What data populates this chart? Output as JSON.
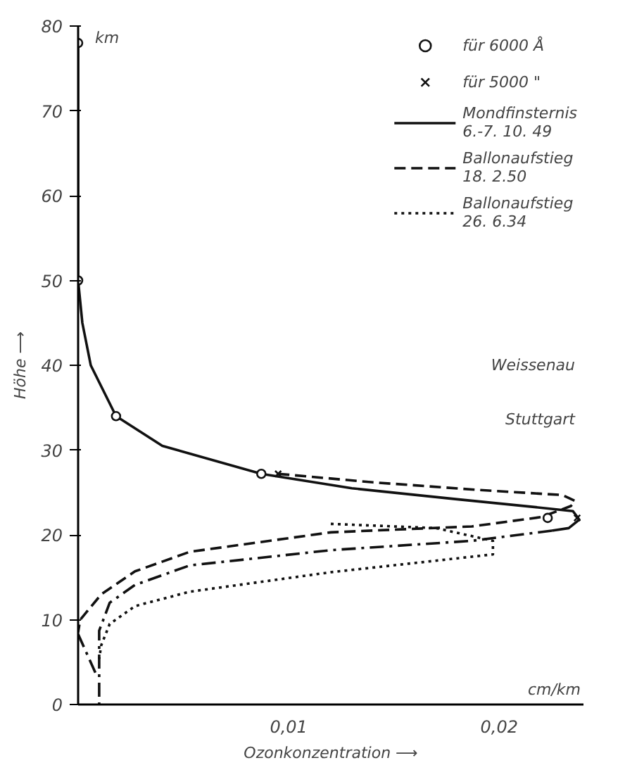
{
  "chart_data": {
    "type": "line",
    "xlabel": "Ozonkonzentration ⟶",
    "ylabel": "Höhe ⟶",
    "xlim": [
      0,
      0.024
    ],
    "ylim": [
      0,
      80
    ],
    "xticks": [
      {
        "value": 0.01,
        "label": "0,01"
      },
      {
        "value": 0.02,
        "label": "0,02"
      }
    ],
    "yticks": [
      0,
      10,
      20,
      30,
      40,
      50,
      60,
      70,
      80
    ],
    "grid": false,
    "legend": "top right",
    "annotations": [
      "km",
      "cm/km",
      "Weissenau",
      "Stuttgart"
    ],
    "series": [
      {
        "name": "Mondfinsternis\n6.-7. 10. 49",
        "color": "#111111",
        "line_style": "solid",
        "x": [
          0,
          0,
          0.0002,
          0.0006,
          0.0018,
          0.004,
          0.0087,
          0.013,
          0.018,
          0.022,
          0.0235,
          0.0238,
          0.0233,
          0.0225
        ],
        "values": [
          78,
          50,
          45,
          40,
          34,
          30.5,
          27.2,
          25.5,
          24.2,
          23.2,
          22.8,
          21.8,
          20.8,
          20.5
        ]
      },
      {
        "name": "Ballonaufstieg\n18. 2.50",
        "color": "#111111",
        "line_style": "dashed",
        "x": [
          0.0095,
          0.014,
          0.019,
          0.023,
          0.0236,
          0.0234,
          0.022,
          0.0187,
          0.012,
          0.0053,
          0.0027,
          0.0011,
          0.0001,
          0
        ],
        "values": [
          27.2,
          26.2,
          25.3,
          24.7,
          24,
          23.4,
          22.1,
          21,
          20.3,
          18,
          15.7,
          13,
          10,
          8.5
        ]
      },
      {
        "name": "Ballonaufstieg\n26. 6.34",
        "color": "#111111",
        "line_style": "dotted",
        "x": [
          0.012,
          0.017,
          0.0197,
          0.0197,
          0.012,
          0.0053,
          0.0027,
          0.0015,
          0.0011,
          0.001
        ],
        "values": [
          21.3,
          20.8,
          19.3,
          17.7,
          15.6,
          13.3,
          11.6,
          9.5,
          7,
          5.4
        ]
      },
      {
        "color": "#111111",
        "line_style": "dashdot",
        "x": [
          0.0225,
          0.0187,
          0.012,
          0.0053,
          0.0027,
          0.0015,
          0.001,
          0.001
        ],
        "values": [
          20.5,
          19.3,
          18.2,
          16.4,
          14.1,
          12,
          8.7,
          0
        ]
      },
      {
        "color": "#111111",
        "line_style": "dashdot",
        "x": [
          0,
          0.0009
        ],
        "values": [
          8.3,
          3.3
        ]
      },
      {
        "name": "für 6000 Å",
        "type": "scatter",
        "marker": "circle",
        "color": "#111111",
        "x": [
          0,
          0,
          0.0018,
          0.0087,
          0.0223
        ],
        "values": [
          78,
          50,
          34,
          27.2,
          22
        ]
      },
      {
        "name": "für 5000 \"",
        "type": "scatter",
        "marker": "cross",
        "color": "#111111",
        "x": [
          0.0095,
          0.0237
        ],
        "values": [
          27.2,
          22
        ]
      }
    ]
  }
}
